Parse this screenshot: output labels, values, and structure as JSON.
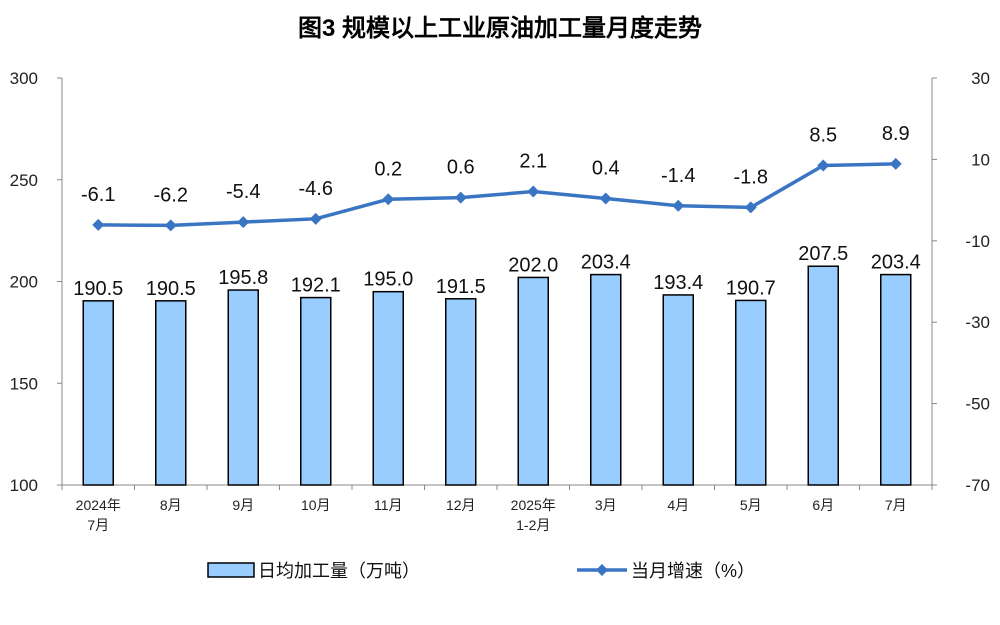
{
  "chart_data": {
    "type": "bar+line",
    "title": "图3  规模以上工业原油加工量月度走势",
    "categories": [
      [
        "2024年",
        "7月"
      ],
      [
        "8月"
      ],
      [
        "9月"
      ],
      [
        "10月"
      ],
      [
        "11月"
      ],
      [
        "12月"
      ],
      [
        "2025年",
        "1-2月"
      ],
      [
        "3月"
      ],
      [
        "4月"
      ],
      [
        "5月"
      ],
      [
        "6月"
      ],
      [
        "7月"
      ]
    ],
    "left_axis": {
      "ylim": [
        100,
        300
      ],
      "ticks": [
        100,
        150,
        200,
        250,
        300
      ]
    },
    "right_axis": {
      "ylim": [
        -70,
        30
      ],
      "ticks": [
        -70,
        -50,
        -30,
        -10,
        10,
        30
      ]
    },
    "series": [
      {
        "name": "日均加工量（万吨）",
        "type": "bar",
        "axis": "left",
        "color": "#99CCFF",
        "values": [
          190.5,
          190.5,
          195.8,
          192.1,
          195.0,
          191.5,
          202.0,
          203.4,
          193.4,
          190.7,
          207.5,
          203.4
        ],
        "labels": [
          "190.5",
          "190.5",
          "195.8",
          "192.1",
          "195.0",
          "191.5",
          "202.0",
          "203.4",
          "193.4",
          "190.7",
          "207.5",
          "203.4"
        ]
      },
      {
        "name": "当月增速（%）",
        "type": "line",
        "axis": "right",
        "color": "#3A75C4",
        "marker": "diamond",
        "values": [
          -6.1,
          -6.2,
          -5.4,
          -4.6,
          0.2,
          0.6,
          2.1,
          0.4,
          -1.4,
          -1.8,
          8.5,
          8.9
        ],
        "labels": [
          "-6.1",
          "-6.2",
          "-5.4",
          "-4.6",
          "0.2",
          "0.6",
          "2.1",
          "0.4",
          "-1.4",
          "-1.8",
          "8.5",
          "8.9"
        ]
      }
    ],
    "legend": "bottom",
    "grid": false
  }
}
